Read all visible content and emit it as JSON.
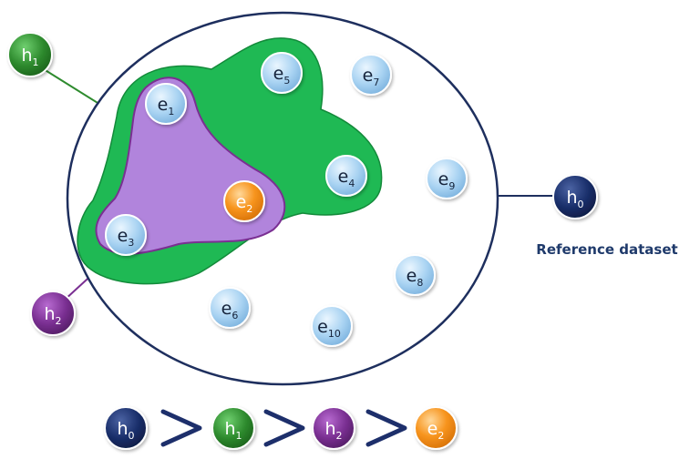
{
  "caption": "Reference dataset",
  "colors": {
    "dataset_ring": "#1e2f5e",
    "green_region": "#1fb954",
    "purple_region": "#b184dc",
    "node_light": "#a9d3f2",
    "node_orange": "#f7941d",
    "h0": "#1a2f6b",
    "h1": "#2e8b2e",
    "h2": "#7a2f92",
    "comparator": "#1d2f6b"
  },
  "hypotheses": {
    "h0": {
      "base": "h",
      "sub": "0"
    },
    "h1": {
      "base": "h",
      "sub": "1"
    },
    "h2": {
      "base": "h",
      "sub": "2"
    }
  },
  "entities": [
    {
      "base": "e",
      "sub": "1",
      "icon": "node-light"
    },
    {
      "base": "e",
      "sub": "2",
      "icon": "node-orange"
    },
    {
      "base": "e",
      "sub": "3",
      "icon": "node-light"
    },
    {
      "base": "e",
      "sub": "4",
      "icon": "node-light"
    },
    {
      "base": "e",
      "sub": "5",
      "icon": "node-light"
    },
    {
      "base": "e",
      "sub": "6",
      "icon": "node-light"
    },
    {
      "base": "e",
      "sub": "7",
      "icon": "node-light"
    },
    {
      "base": "e",
      "sub": "8",
      "icon": "node-light"
    },
    {
      "base": "e",
      "sub": "9",
      "icon": "node-light"
    },
    {
      "base": "e",
      "sub": "10",
      "icon": "node-light"
    }
  ],
  "ranking": {
    "items": [
      {
        "base": "h",
        "sub": "0"
      },
      {
        "base": "h",
        "sub": "1"
      },
      {
        "base": "h",
        "sub": "2"
      },
      {
        "base": "e",
        "sub": "2"
      }
    ],
    "comparator": "greater-than"
  }
}
